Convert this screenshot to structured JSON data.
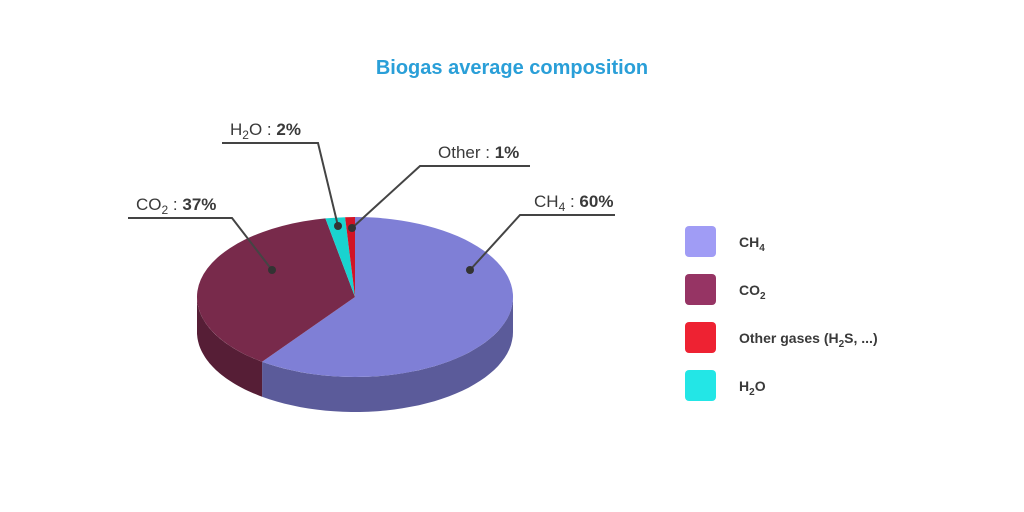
{
  "chart_data": {
    "type": "pie",
    "title": "Biogas average composition",
    "slices": [
      {
        "base": "CH",
        "sub": "4",
        "value": 60,
        "value_label": "60%",
        "color": "#7f7fd6"
      },
      {
        "base": "CO",
        "sub": "2",
        "value": 37,
        "value_label": "37%",
        "color": "#782a4b"
      },
      {
        "base": "H",
        "sub": "2",
        "tail": "O",
        "value": 2,
        "value_label": "2%",
        "color": "#19d3cf"
      },
      {
        "base": "Other",
        "value": 1,
        "value_label": "1%",
        "color": "#d21426"
      }
    ],
    "legend": {
      "position": "right",
      "items": [
        {
          "color": "#a09cf5",
          "parts": [
            {
              "t": "CH"
            },
            {
              "t": "4",
              "sub": true
            }
          ]
        },
        {
          "color": "#963464",
          "parts": [
            {
              "t": "CO"
            },
            {
              "t": "2",
              "sub": true
            }
          ]
        },
        {
          "color": "#ee2232",
          "parts": [
            {
              "t": "Other gases (H"
            },
            {
              "t": "2",
              "sub": true
            },
            {
              "t": "S, ...)"
            }
          ]
        },
        {
          "color": "#23e6e6",
          "parts": [
            {
              "t": "H"
            },
            {
              "t": "2",
              "sub": true
            },
            {
              "t": "O"
            }
          ]
        }
      ]
    },
    "colors": {
      "title": "#2a9fd8",
      "leader": "#444444"
    }
  }
}
